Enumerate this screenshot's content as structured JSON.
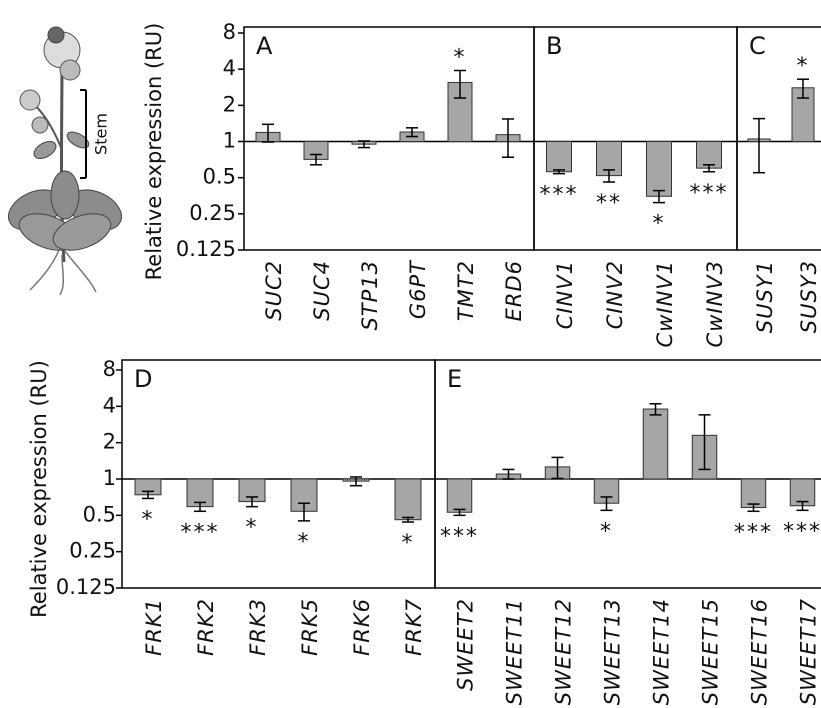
{
  "illustration": {
    "label": "Stem"
  },
  "chart_data": [
    {
      "type": "bar",
      "panel": "A",
      "ylabel": "Relative expression (RU)",
      "yscale": "log2",
      "color": "#a6a6a6",
      "categories": [
        "SUC2",
        "SUC4",
        "STP13",
        "G6PT",
        "TMT2",
        "ERD6"
      ],
      "values": [
        1.19,
        0.71,
        0.95,
        1.2,
        3.1,
        1.14
      ],
      "errors": [
        0.2,
        0.07,
        0.06,
        0.1,
        0.8,
        0.4
      ],
      "annotations": [
        null,
        null,
        null,
        null,
        "*",
        null
      ],
      "ylim": [
        0.125,
        8
      ],
      "yticks": [
        8,
        4,
        2,
        1,
        0.5,
        0.25,
        0.125
      ]
    },
    {
      "type": "bar",
      "panel": "B",
      "yscale": "log2",
      "color": "#a6a6a6",
      "categories": [
        "CINV1",
        "CINV2",
        "CwINV1",
        "CwINV3"
      ],
      "values": [
        0.56,
        0.52,
        0.35,
        0.6
      ],
      "errors": [
        0.02,
        0.06,
        0.04,
        0.04
      ],
      "annotations": [
        "***",
        "**",
        "*",
        "***"
      ],
      "ylim": [
        0.125,
        8
      ]
    },
    {
      "type": "bar",
      "panel": "C",
      "yscale": "log2",
      "color": "#a6a6a6",
      "categories": [
        "SUSY1",
        "SUSY3"
      ],
      "values": [
        1.05,
        2.8
      ],
      "errors": [
        0.5,
        0.5
      ],
      "annotations": [
        null,
        "*"
      ],
      "ylim": [
        0.125,
        8
      ]
    },
    {
      "type": "bar",
      "panel": "D",
      "ylabel": "Relative expression (RU)",
      "yscale": "log2",
      "color": "#a6a6a6",
      "categories": [
        "FRK1",
        "FRK2",
        "FRK3",
        "FRK5",
        "FRK6",
        "FRK7"
      ],
      "values": [
        0.74,
        0.59,
        0.65,
        0.54,
        0.96,
        0.46
      ],
      "errors": [
        0.05,
        0.05,
        0.06,
        0.09,
        0.08,
        0.02
      ],
      "annotations": [
        "*",
        "***",
        "*",
        "*",
        null,
        "*"
      ],
      "ylim": [
        0.125,
        8
      ],
      "yticks": [
        8,
        4,
        2,
        1,
        0.5,
        0.25,
        0.125
      ]
    },
    {
      "type": "bar",
      "panel": "E",
      "yscale": "log2",
      "color": "#a6a6a6",
      "categories": [
        "SWEET2",
        "SWEET11",
        "SWEET12",
        "SWEET13",
        "SWEET14",
        "SWEET15",
        "SWEET16",
        "SWEET17"
      ],
      "values": [
        0.53,
        1.1,
        1.26,
        0.63,
        3.8,
        2.3,
        0.58,
        0.6
      ],
      "errors": [
        0.03,
        0.1,
        0.25,
        0.08,
        0.4,
        1.1,
        0.04,
        0.05
      ],
      "annotations": [
        "***",
        null,
        null,
        "*",
        null,
        null,
        "***",
        "***"
      ],
      "ylim": [
        0.125,
        8
      ]
    }
  ]
}
